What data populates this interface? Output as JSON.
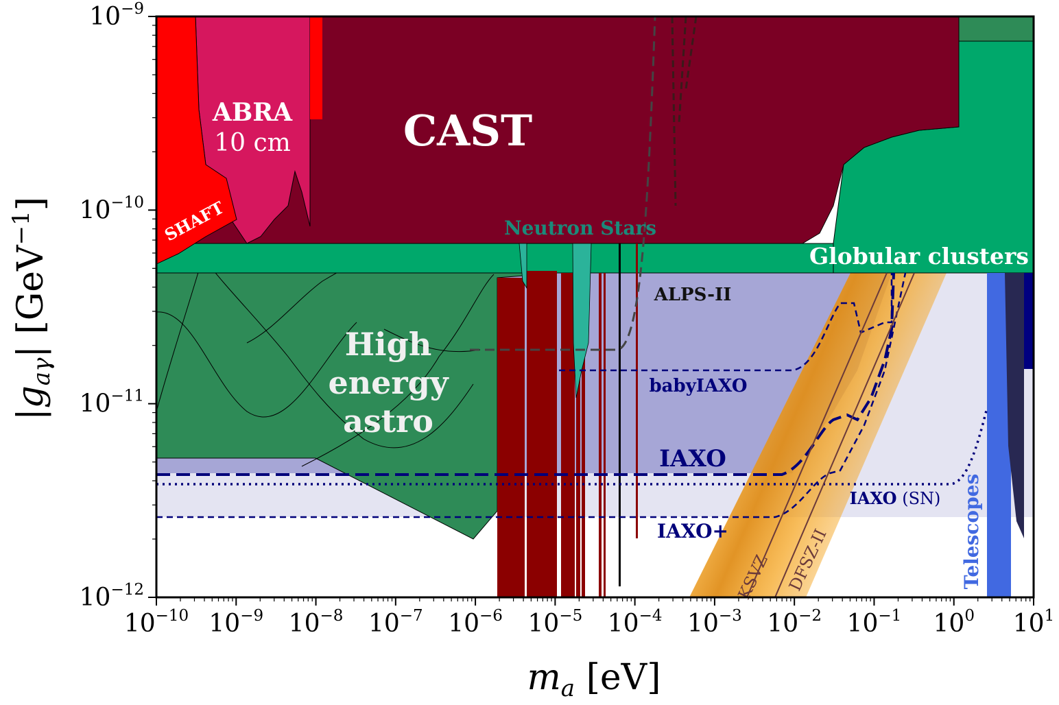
{
  "chart_data": {
    "type": "area",
    "xlabel": "m_a [eV]",
    "ylabel": "|g_aγ| [GeV^-1]",
    "xscale": "log",
    "yscale": "log",
    "xlim": [
      1e-10,
      10
    ],
    "ylim": [
      1e-12,
      1e-09
    ],
    "x_ticks": [
      {
        "base": "10",
        "exp": "−10"
      },
      {
        "base": "10",
        "exp": "−9"
      },
      {
        "base": "10",
        "exp": "−8"
      },
      {
        "base": "10",
        "exp": "−7"
      },
      {
        "base": "10",
        "exp": "−6"
      },
      {
        "base": "10",
        "exp": "−5"
      },
      {
        "base": "10",
        "exp": "−4"
      },
      {
        "base": "10",
        "exp": "−3"
      },
      {
        "base": "10",
        "exp": "−2"
      },
      {
        "base": "10",
        "exp": "−1"
      },
      {
        "base": "10",
        "exp": "0"
      },
      {
        "base": "10",
        "exp": "1"
      }
    ],
    "y_ticks": [
      {
        "base": "10",
        "exp": "−12"
      },
      {
        "base": "10",
        "exp": "−11"
      },
      {
        "base": "10",
        "exp": "−10"
      },
      {
        "base": "10",
        "exp": "−9"
      }
    ],
    "grid": false,
    "colors": {
      "cast": "#7b0024",
      "high_energy_astro": "#2e8b57",
      "globular_clusters": "#00a86b",
      "abra": "#d6175e",
      "shaft": "#ff0000",
      "haloscopes": "#8b0000",
      "neutron_stars": "#2bb39a",
      "iaxo_region": "#a6a6d6",
      "iaxo_plus_region": "#e4e4f2",
      "iaxo_lines": "#00007a",
      "qcd_band": "#f5a623",
      "telescopes": "#4169e1",
      "dark_navy": "#000080",
      "alps": "#444444"
    },
    "series": [
      {
        "name": "CAST",
        "kind": "exclusion",
        "x": [
          1e-10,
          10
        ],
        "y": [
          6.6e-11,
          6.6e-11
        ]
      },
      {
        "name": "Globular clusters",
        "kind": "exclusion",
        "x": [
          1e-10,
          10
        ],
        "y": [
          4.7e-11,
          4.7e-11
        ]
      },
      {
        "name": "ABRA 10 cm",
        "kind": "exclusion",
        "x": [
          3e-10,
          8e-09
        ],
        "y": [
          7e-11,
          7e-11
        ]
      },
      {
        "name": "SHAFT",
        "kind": "exclusion",
        "x": [
          1e-10,
          1e-09
        ],
        "y": [
          5e-11,
          1e-10
        ]
      },
      {
        "name": "High energy astro",
        "kind": "exclusion",
        "x": [
          1e-10,
          1e-06,
          2e-06
        ],
        "y": [
          5e-12,
          2e-12,
          3e-12
        ]
      },
      {
        "name": "Neutron Stars",
        "kind": "exclusion",
        "x": [
          3.5e-06,
          2.5e-05
        ],
        "y": [
          2e-11,
          1e-11
        ]
      },
      {
        "name": "ALPS-II",
        "kind": "projection",
        "x": [
          1e-06,
          0.0001,
          0.0002
        ],
        "y": [
          1.9e-11,
          1.9e-11,
          1e-09
        ]
      },
      {
        "name": "babyIAXO",
        "kind": "projection",
        "x": [
          1e-05,
          0.007,
          0.02,
          0.04,
          0.05,
          0.15,
          0.17
        ],
        "y": [
          1.5e-11,
          1.5e-11,
          2.4e-11,
          3.2e-11,
          2.3e-11,
          2e-11,
          4.7e-11
        ]
      },
      {
        "name": "IAXO",
        "kind": "projection",
        "x": [
          1e-10,
          0.005,
          0.02,
          0.05,
          0.1,
          0.17
        ],
        "y": [
          4.3e-12,
          4.3e-12,
          7.5e-12,
          8.5e-12,
          1.3e-11,
          4.7e-11
        ]
      },
      {
        "name": "IAXO+",
        "kind": "projection",
        "x": [
          1e-10,
          0.005,
          0.02,
          0.04,
          0.1,
          0.25
        ],
        "y": [
          2.6e-12,
          2.6e-12,
          4.2e-12,
          6e-12,
          1.3e-11,
          4.7e-11
        ]
      },
      {
        "name": "IAXO (SN)",
        "kind": "projection",
        "x": [
          1e-10,
          1,
          2,
          3
        ],
        "y": [
          3.9e-12,
          3.9e-12,
          5e-12,
          9.5e-12
        ]
      },
      {
        "name": "KSVZ",
        "kind": "model",
        "x": [
          0.0028,
          0.13
        ],
        "y": [
          1e-12,
          4.7e-11
        ]
      },
      {
        "name": "DFSZ-II",
        "kind": "model",
        "x": [
          0.006,
          0.28
        ],
        "y": [
          1e-12,
          4.7e-11
        ]
      },
      {
        "name": "Telescopes",
        "kind": "exclusion",
        "x": [
          3,
          5
        ],
        "y": [
          1e-12,
          4.7e-11
        ]
      }
    ]
  },
  "labels": {
    "cast": "CAST",
    "abra_line1": "ABRA",
    "abra_line2": "10 cm",
    "shaft": "SHAFT",
    "neutron_stars": "Neutron Stars",
    "globular_clusters": "Globular clusters",
    "high_line1": "High",
    "high_line2": "energy",
    "high_line3": "astro",
    "alps": "ALPS-II",
    "babyiaxo": "babyIAXO",
    "iaxo": "IAXO",
    "iaxo_plus": "IAXO+",
    "iaxo_sn_bold": "IAXO",
    "iaxo_sn_tag": "(SN)",
    "ksvz": "KSVZ",
    "dfsz": "DFSZ-II",
    "telescopes": "Telescopes"
  }
}
